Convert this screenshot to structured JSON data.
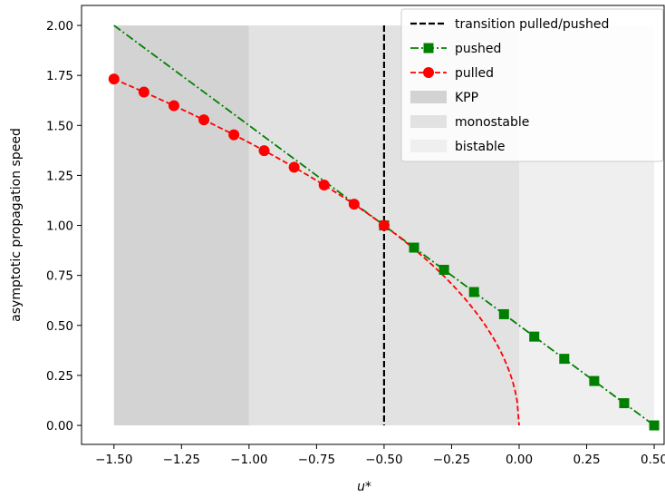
{
  "chart_data": {
    "type": "line",
    "xlabel": "u*",
    "ylabel": "asymptotic propagation speed",
    "xlim": [
      -1.62,
      0.54
    ],
    "ylim": [
      -0.095,
      2.1
    ],
    "grid": false,
    "legend_position": "top-right",
    "x_ticks": [
      "−1.50",
      "−1.25",
      "−1.00",
      "−0.75",
      "−0.50",
      "−0.25",
      "0.00",
      "0.25",
      "0.50"
    ],
    "x_tick_values": [
      -1.5,
      -1.25,
      -1.0,
      -0.75,
      -0.5,
      -0.25,
      0.0,
      0.25,
      0.5
    ],
    "y_ticks": [
      "0.00",
      "0.25",
      "0.50",
      "0.75",
      "1.00",
      "1.25",
      "1.50",
      "1.75",
      "2.00"
    ],
    "y_tick_values": [
      0.0,
      0.25,
      0.5,
      0.75,
      1.0,
      1.25,
      1.5,
      1.75,
      2.0
    ],
    "regions": [
      {
        "name": "KPP",
        "x": [
          -1.5,
          -1.0
        ],
        "color": "#d3d3d3"
      },
      {
        "name": "monostable",
        "x": [
          -1.0,
          0.0
        ],
        "color": "#e2e2e2"
      },
      {
        "name": "bistable",
        "x": [
          0.0,
          0.5
        ],
        "color": "#efefef"
      }
    ],
    "transition": {
      "name": "transition pulled/pushed",
      "x": -0.5,
      "color": "#000000"
    },
    "series": [
      {
        "name": "pushed",
        "color": "#008000",
        "marker": "square",
        "x": [
          -0.5,
          -0.389,
          -0.278,
          -0.167,
          -0.056,
          0.056,
          0.167,
          0.278,
          0.389,
          0.5
        ],
        "y": [
          1.0,
          0.889,
          0.778,
          0.667,
          0.556,
          0.444,
          0.333,
          0.222,
          0.111,
          0.0
        ]
      },
      {
        "name": "pulled",
        "color": "#ff0000",
        "marker": "circle",
        "x": [
          -1.5,
          -1.389,
          -1.278,
          -1.167,
          -1.056,
          -0.944,
          -0.833,
          -0.722,
          -0.611,
          -0.5
        ],
        "y": [
          1.732,
          1.667,
          1.599,
          1.528,
          1.453,
          1.374,
          1.291,
          1.202,
          1.106,
          1.0
        ]
      }
    ],
    "legend": [
      {
        "label": "transition pulled/pushed",
        "kind": "dashed-line",
        "color": "#000000"
      },
      {
        "label": "pushed",
        "kind": "line-square",
        "color": "#008000"
      },
      {
        "label": "pulled",
        "kind": "line-circle",
        "color": "#ff0000"
      },
      {
        "label": "KPP",
        "kind": "patch",
        "color": "#d3d3d3"
      },
      {
        "label": "monostable",
        "kind": "patch",
        "color": "#e2e2e2"
      },
      {
        "label": "bistable",
        "kind": "patch",
        "color": "#efefef"
      }
    ]
  }
}
